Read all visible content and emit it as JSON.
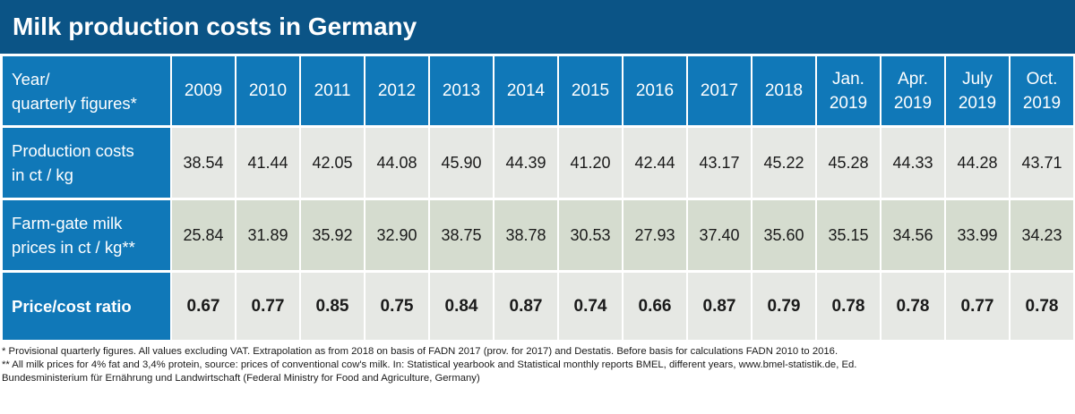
{
  "title": "Milk production costs in Germany",
  "chart_data": {
    "type": "table",
    "title": "Milk production costs in Germany",
    "corner_header": [
      "Year/",
      "quarterly figures*"
    ],
    "columns": [
      [
        "2009"
      ],
      [
        "2010"
      ],
      [
        "2011"
      ],
      [
        "2012"
      ],
      [
        "2013"
      ],
      [
        "2014"
      ],
      [
        "2015"
      ],
      [
        "2016"
      ],
      [
        "2017"
      ],
      [
        "2018"
      ],
      [
        "Jan.",
        "2019"
      ],
      [
        "Apr.",
        "2019"
      ],
      [
        "July",
        "2019"
      ],
      [
        "Oct.",
        "2019"
      ]
    ],
    "rows": [
      {
        "label": [
          "Production costs",
          "in ct / kg"
        ],
        "values": [
          "38.54",
          "41.44",
          "42.05",
          "44.08",
          "45.90",
          "44.39",
          "41.20",
          "42.44",
          "43.17",
          "45.22",
          "45.28",
          "44.33",
          "44.28",
          "43.71"
        ]
      },
      {
        "label": [
          "Farm-gate milk",
          "prices in ct / kg**"
        ],
        "values": [
          "25.84",
          "31.89",
          "35.92",
          "32.90",
          "38.75",
          "38.78",
          "30.53",
          "27.93",
          "37.40",
          "35.60",
          "35.15",
          "34.56",
          "33.99",
          "34.23"
        ]
      },
      {
        "label": [
          "Price/cost ratio"
        ],
        "values": [
          "0.67",
          "0.77",
          "0.85",
          "0.75",
          "0.84",
          "0.87",
          "0.74",
          "0.66",
          "0.87",
          "0.79",
          "0.78",
          "0.78",
          "0.77",
          "0.78"
        ]
      }
    ]
  },
  "notes": [
    "* Provisional quarterly figures. All values excluding VAT. Extrapolation as from 2018 on basis of FADN 2017 (prov. for 2017) and Destatis. Before basis for calculations FADN 2010 to 2016.",
    "**   All milk prices for 4% fat and 3,4% protein, source: prices of conventional cow's milk. In: Statistical yearbook and Statistical monthly reports BMEL, different years, www.bmel-statistik.de, Ed.",
    "Bundesministerium für Ernährung und Landwirtschaft (Federal Ministry for Food and Agriculture, Germany)"
  ],
  "colors": {
    "title_bg": "#0b5486",
    "header_bg": "#1078b8",
    "cell_light": "#e6e8e4",
    "cell_green": "#d5dccf"
  }
}
